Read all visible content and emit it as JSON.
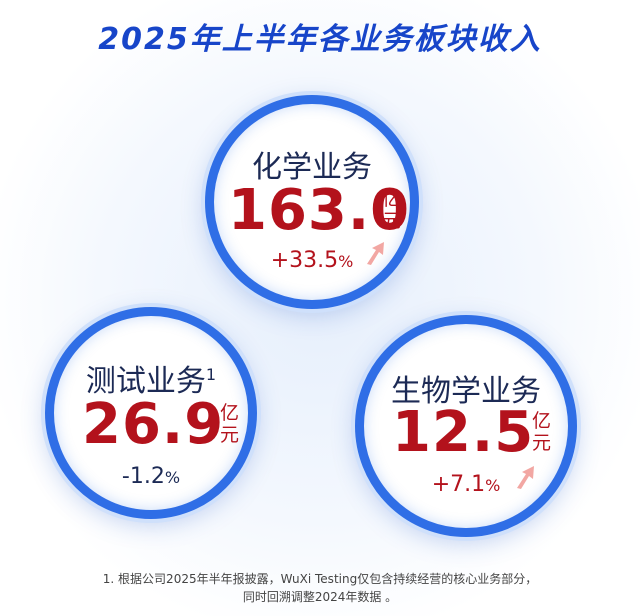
{
  "header": {
    "title": "2025年上半年各业务板块收入"
  },
  "items": [
    {
      "name": "化学业务",
      "value": "163.0",
      "unit_top": "亿",
      "unit_bottom": "元",
      "change": "+33.5",
      "change_unit": "%"
    },
    {
      "name": "测试业务",
      "footnote_mark": "1",
      "value": "26.9",
      "unit_top": "亿",
      "unit_bottom": "元",
      "change": "-1.2",
      "change_unit": "%"
    },
    {
      "name": "生物学业务",
      "value": "12.5",
      "unit_top": "亿",
      "unit_bottom": "元",
      "change": "+7.1",
      "change_unit": "%"
    }
  ],
  "footnote": {
    "lines": [
      "1. 根据公司2025年半年报披露，WuXi Testing仅包含持续经营的核心业务部分，",
      "同时回溯调整2024年数据 。"
    ]
  }
}
